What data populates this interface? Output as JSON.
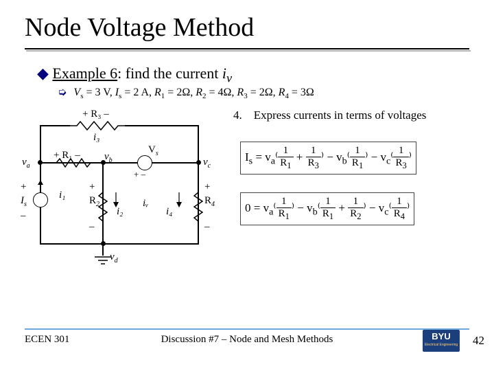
{
  "title": "Node Voltage Method",
  "example": {
    "label": "Example 6",
    "text": ": find the current ",
    "var": "i",
    "sub": "v"
  },
  "given": {
    "prefix": "V",
    "items": [
      {
        "sym": "V",
        "sub": "s",
        "val": "3 V"
      },
      {
        "sym": "I",
        "sub": "s",
        "val": "2 A"
      },
      {
        "sym": "R",
        "sub": "1",
        "val": "2Ω"
      },
      {
        "sym": "R",
        "sub": "2",
        "val": "4Ω"
      },
      {
        "sym": "R",
        "sub": "3",
        "val": "2Ω"
      },
      {
        "sym": "R",
        "sub": "4",
        "val": "3Ω"
      }
    ]
  },
  "step": {
    "num": "4.",
    "text": "Express currents in terms of voltages"
  },
  "circuit": {
    "r3": "+ R₃ –",
    "r1": "+ R₁ –",
    "i3": "i₃",
    "i1": "i₁",
    "i2": "i₂",
    "iv": "iᵥ",
    "i4": "i₄",
    "va": "vₐ",
    "vb": "v_b",
    "vc": "v_c",
    "vd": "v_d",
    "Vs": "Vₛ",
    "Is": "Iₛ",
    "R2": "R₂",
    "R4": "R₄",
    "plus": "+",
    "minus": "–",
    "plusminus": "+  –"
  },
  "eq1_html": "I<sub>s</sub> = v<sub>a</sub>&#8317;<span class='frac'><span class='num'>1</span><span class='den'>R<sub>1</sub></span></span> + <span class='frac'><span class='num'>1</span><span class='den'>R<sub>3</sub></span></span>&#8318; − v<sub>b</sub>&#8317;<span class='frac'><span class='num'>1</span><span class='den'>R<sub>1</sub></span></span>&#8318; − v<sub>c</sub>&#8317;<span class='frac'><span class='num'>1</span><span class='den'>R<sub>3</sub></span></span>&#8318;",
  "eq2_html": "0 = v<sub>a</sub>&#8317;<span class='frac'><span class='num'>1</span><span class='den'>R<sub>1</sub></span></span>&#8318; − v<sub>b</sub>&#8317;<span class='frac'><span class='num'>1</span><span class='den'>R<sub>1</sub></span></span> + <span class='frac'><span class='num'>1</span><span class='den'>R<sub>2</sub></span></span>&#8318; − v<sub>c</sub>&#8317;<span class='frac'><span class='num'>1</span><span class='den'>R<sub>4</sub></span></span>&#8318;",
  "footer": {
    "left": "ECEN 301",
    "center": "Discussion #7 – Node and Mesh Methods",
    "page": "42",
    "logo": "BYU"
  },
  "colors": {
    "accent": "#000080",
    "rule": "#6fa8dc",
    "logo_bg": "#1b3e7c"
  }
}
